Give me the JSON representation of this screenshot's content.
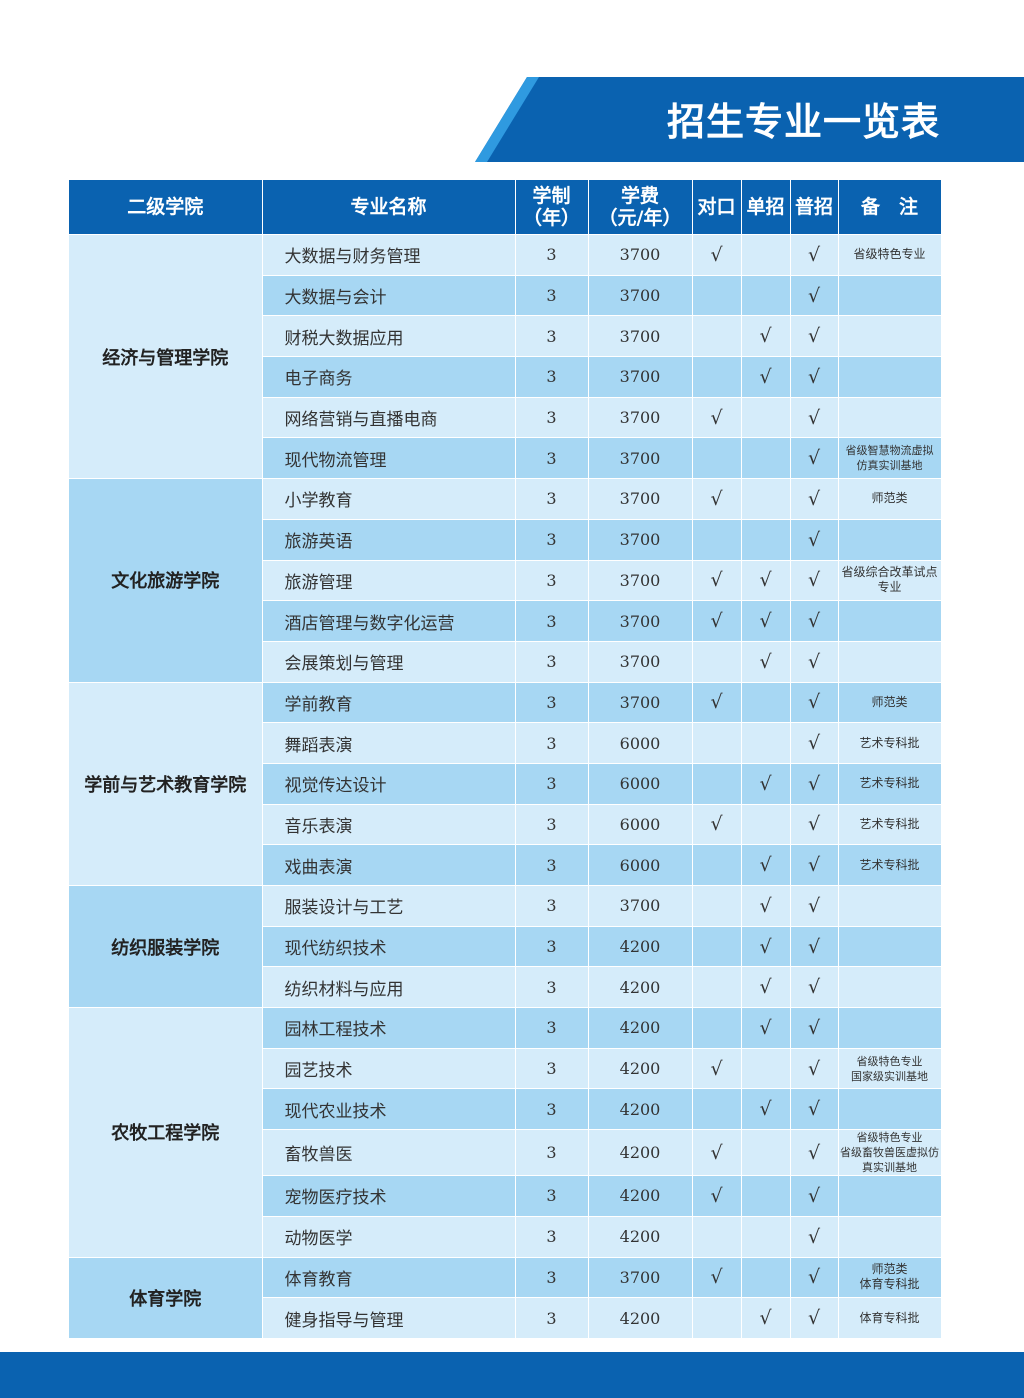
{
  "title": "招生专业一览表",
  "colors": {
    "header": "#0a62b0",
    "row_light": "#d5ecfa",
    "row_medium": "#a7d7f3",
    "accent_stripe": "#2f9ae0"
  },
  "columns": [
    "二级学院",
    "专业名称",
    "学制\n（年）",
    "学费\n（元/年）",
    "对口",
    "单招",
    "普招",
    "备　注"
  ],
  "check": "√",
  "colleges": [
    {
      "name": "经济与管理学院",
      "majors": [
        {
          "name": "大数据与财务管理",
          "years": "3",
          "fee": "3700",
          "duikou": true,
          "danzhao": false,
          "puzhao": true,
          "note": "省级特色专业"
        },
        {
          "name": "大数据与会计",
          "years": "3",
          "fee": "3700",
          "duikou": false,
          "danzhao": false,
          "puzhao": true,
          "note": ""
        },
        {
          "name": "财税大数据应用",
          "years": "3",
          "fee": "3700",
          "duikou": false,
          "danzhao": true,
          "puzhao": true,
          "note": ""
        },
        {
          "name": "电子商务",
          "years": "3",
          "fee": "3700",
          "duikou": false,
          "danzhao": true,
          "puzhao": true,
          "note": ""
        },
        {
          "name": "网络营销与直播电商",
          "years": "3",
          "fee": "3700",
          "duikou": true,
          "danzhao": false,
          "puzhao": true,
          "note": ""
        },
        {
          "name": "现代物流管理",
          "years": "3",
          "fee": "3700",
          "duikou": false,
          "danzhao": false,
          "puzhao": true,
          "note": "省级智慧物流虚拟\n仿真实训基地"
        }
      ]
    },
    {
      "name": "文化旅游学院",
      "majors": [
        {
          "name": "小学教育",
          "years": "3",
          "fee": "3700",
          "duikou": true,
          "danzhao": false,
          "puzhao": true,
          "note": "师范类"
        },
        {
          "name": "旅游英语",
          "years": "3",
          "fee": "3700",
          "duikou": false,
          "danzhao": false,
          "puzhao": true,
          "note": ""
        },
        {
          "name": "旅游管理",
          "years": "3",
          "fee": "3700",
          "duikou": true,
          "danzhao": true,
          "puzhao": true,
          "note": "省级综合改革试点专业"
        },
        {
          "name": "酒店管理与数字化运营",
          "years": "3",
          "fee": "3700",
          "duikou": true,
          "danzhao": true,
          "puzhao": true,
          "note": ""
        },
        {
          "name": "会展策划与管理",
          "years": "3",
          "fee": "3700",
          "duikou": false,
          "danzhao": true,
          "puzhao": true,
          "note": ""
        }
      ]
    },
    {
      "name": "学前与艺术教育学院",
      "majors": [
        {
          "name": "学前教育",
          "years": "3",
          "fee": "3700",
          "duikou": true,
          "danzhao": false,
          "puzhao": true,
          "note": "师范类"
        },
        {
          "name": "舞蹈表演",
          "years": "3",
          "fee": "6000",
          "duikou": false,
          "danzhao": false,
          "puzhao": true,
          "note": "艺术专科批"
        },
        {
          "name": "视觉传达设计",
          "years": "3",
          "fee": "6000",
          "duikou": false,
          "danzhao": true,
          "puzhao": true,
          "note": "艺术专科批"
        },
        {
          "name": "音乐表演",
          "years": "3",
          "fee": "6000",
          "duikou": true,
          "danzhao": false,
          "puzhao": true,
          "note": "艺术专科批"
        },
        {
          "name": "戏曲表演",
          "years": "3",
          "fee": "6000",
          "duikou": false,
          "danzhao": true,
          "puzhao": true,
          "note": "艺术专科批"
        }
      ]
    },
    {
      "name": "纺织服装学院",
      "majors": [
        {
          "name": "服装设计与工艺",
          "years": "3",
          "fee": "3700",
          "duikou": false,
          "danzhao": true,
          "puzhao": true,
          "note": ""
        },
        {
          "name": "现代纺织技术",
          "years": "3",
          "fee": "4200",
          "duikou": false,
          "danzhao": true,
          "puzhao": true,
          "note": ""
        },
        {
          "name": "纺织材料与应用",
          "years": "3",
          "fee": "4200",
          "duikou": false,
          "danzhao": true,
          "puzhao": true,
          "note": ""
        }
      ]
    },
    {
      "name": "农牧工程学院",
      "majors": [
        {
          "name": "园林工程技术",
          "years": "3",
          "fee": "4200",
          "duikou": false,
          "danzhao": true,
          "puzhao": true,
          "note": ""
        },
        {
          "name": "园艺技术",
          "years": "3",
          "fee": "4200",
          "duikou": true,
          "danzhao": false,
          "puzhao": true,
          "note": "省级特色专业\n国家级实训基地"
        },
        {
          "name": "现代农业技术",
          "years": "3",
          "fee": "4200",
          "duikou": false,
          "danzhao": true,
          "puzhao": true,
          "note": ""
        },
        {
          "name": "畜牧兽医",
          "years": "3",
          "fee": "4200",
          "duikou": true,
          "danzhao": false,
          "puzhao": true,
          "note": "省级特色专业\n省级畜牧兽医虚拟仿真实训基地"
        },
        {
          "name": "宠物医疗技术",
          "years": "3",
          "fee": "4200",
          "duikou": true,
          "danzhao": false,
          "puzhao": true,
          "note": ""
        },
        {
          "name": "动物医学",
          "years": "3",
          "fee": "4200",
          "duikou": false,
          "danzhao": false,
          "puzhao": true,
          "note": ""
        }
      ]
    },
    {
      "name": "体育学院",
      "majors": [
        {
          "name": "体育教育",
          "years": "3",
          "fee": "3700",
          "duikou": true,
          "danzhao": false,
          "puzhao": true,
          "note": "师范类\n体育专科批"
        },
        {
          "name": "健身指导与管理",
          "years": "3",
          "fee": "4200",
          "duikou": false,
          "danzhao": true,
          "puzhao": true,
          "note": "体育专科批"
        }
      ]
    }
  ]
}
